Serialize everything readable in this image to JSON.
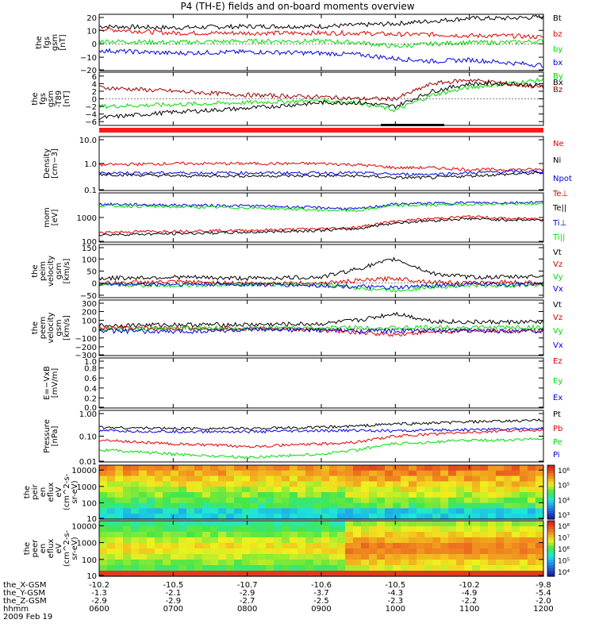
{
  "title": "P4 (TH-E) fields and on-board moments overview",
  "footer": {
    "row_labels": [
      "the_X-GSM",
      "the_Y-GSM",
      "the_Z-GSM",
      "hhmm",
      "2009 Feb 19"
    ],
    "x_gsm": [
      "-10.2",
      "-10.5",
      "-10.7",
      "-10.6",
      "-10.5",
      "-10.2",
      "-9.8"
    ],
    "y_gsm": [
      "-1.3",
      "-2.1",
      "-2.9",
      "-3.7",
      "-4.3",
      "-4.9",
      "-5.4"
    ],
    "z_gsm": [
      "-2.9",
      "-2.9",
      "-2.7",
      "-2.5",
      "-2.3",
      "-2.2",
      "-2.0"
    ],
    "hhmm": [
      "0600",
      "0700",
      "0800",
      "0900",
      "1000",
      "1100",
      "1200"
    ]
  },
  "colors": {
    "black": "#000000",
    "red": "#dd0000",
    "green": "#00dd00",
    "blue": "#0000dd"
  },
  "chart_data": [
    {
      "type": "line",
      "ylabel": [
        "the",
        "fgs",
        "gsm",
        "[nT]"
      ],
      "yticks": [
        "20",
        "10",
        "0",
        "−10",
        "−20"
      ],
      "ylim": [
        -20,
        22
      ],
      "legend": [
        "Bt",
        "bz",
        "by",
        "bx"
      ],
      "series": [
        {
          "name": "Bt",
          "color": "#000000",
          "x": [
            6,
            7,
            8,
            9,
            9.5,
            10,
            10.5,
            11,
            11.5,
            12
          ],
          "values": [
            13,
            12,
            13,
            13,
            14,
            15,
            17,
            19,
            19,
            20
          ]
        },
        {
          "name": "bz",
          "color": "#dd0000",
          "x": [
            6,
            7,
            8,
            9,
            9.5,
            10,
            10.5,
            11,
            11.5,
            12
          ],
          "values": [
            11,
            8,
            8,
            8,
            8,
            7,
            7,
            6,
            6,
            5
          ]
        },
        {
          "name": "by",
          "color": "#00dd00",
          "x": [
            6,
            7,
            8,
            9,
            9.5,
            10,
            10.5,
            11,
            11.5,
            12
          ],
          "values": [
            2,
            1,
            2,
            2,
            1,
            -2,
            0,
            1,
            1,
            2
          ]
        },
        {
          "name": "bx",
          "color": "#0000dd",
          "x": [
            6,
            7,
            8,
            9,
            9.5,
            10,
            10.5,
            11,
            11.5,
            12
          ],
          "values": [
            -5,
            -7,
            -6,
            -7,
            -8,
            -11,
            -13,
            -12,
            -14,
            -16
          ]
        }
      ]
    },
    {
      "type": "line",
      "ylabel": [
        "the",
        "fgs",
        "gsm",
        "-T89",
        "[nT]"
      ],
      "yticks": [
        "6",
        "4",
        "2",
        "0",
        "−2",
        "−4",
        "−6"
      ],
      "ylim": [
        -7,
        7
      ],
      "legend": [
        "By",
        "Bx",
        "Bz"
      ],
      "series": [
        {
          "name": "By",
          "color": "#00dd00",
          "x": [
            6,
            7,
            8,
            9,
            9.5,
            10,
            10.5,
            11,
            11.5,
            12
          ],
          "values": [
            -2,
            -1.5,
            -1,
            -0.5,
            -1,
            -3,
            1,
            3,
            4,
            5
          ]
        },
        {
          "name": "Bx",
          "color": "#000000",
          "x": [
            6,
            7,
            8,
            9,
            9.5,
            10,
            10.5,
            11,
            11.5,
            12
          ],
          "values": [
            -5,
            -3.5,
            -2.5,
            -1,
            -1,
            -2,
            2,
            4,
            4,
            3.5
          ]
        },
        {
          "name": "Bz",
          "color": "#990000",
          "x": [
            6,
            7,
            8,
            9,
            9.5,
            10,
            10.5,
            11,
            11.5,
            12
          ],
          "values": [
            3,
            2,
            1,
            0.5,
            0,
            0,
            4,
            5,
            4,
            3
          ]
        }
      ]
    },
    {
      "type": "line",
      "ylabel": [
        "Density",
        "[cm−3]"
      ],
      "yticks": [
        "10.0",
        "1.0",
        "0.1"
      ],
      "ylim": [
        0.1,
        10
      ],
      "scale": "log",
      "legend": [
        "Ne",
        "Ni",
        "Npot"
      ],
      "series": [
        {
          "name": "Ne",
          "color": "#dd0000",
          "x": [
            6,
            7,
            8,
            9,
            9.5,
            10,
            10.5,
            11,
            11.5,
            12
          ],
          "values": [
            0.9,
            1.0,
            1.0,
            1.0,
            0.9,
            0.7,
            0.7,
            0.6,
            0.6,
            0.6
          ]
        },
        {
          "name": "Ni",
          "color": "#000000",
          "x": [
            6,
            7,
            8,
            9,
            9.5,
            10,
            10.5,
            11,
            11.5,
            12
          ],
          "values": [
            0.4,
            0.35,
            0.35,
            0.35,
            0.35,
            0.3,
            0.3,
            0.35,
            0.4,
            0.45
          ]
        },
        {
          "name": "Npot",
          "color": "#0000dd",
          "x": [
            6,
            7,
            8,
            9,
            9.5,
            10,
            10.5,
            11,
            11.5,
            12
          ],
          "values": [
            0.45,
            0.45,
            0.45,
            0.45,
            0.45,
            0.4,
            0.4,
            0.45,
            0.5,
            0.5
          ]
        }
      ]
    },
    {
      "type": "line",
      "ylabel": [
        "mom",
        "[eV]"
      ],
      "yticks": [
        "1000",
        "100"
      ],
      "ylim": [
        100,
        10000
      ],
      "scale": "log",
      "legend": [
        "Te⊥",
        "Te||",
        "Ti⊥",
        "Ti||"
      ],
      "series": [
        {
          "name": "Ti⊥",
          "color": "#0000dd",
          "x": [
            6,
            7,
            8,
            9,
            9.5,
            10,
            10.5,
            11,
            11.5,
            12
          ],
          "values": [
            3500,
            3200,
            3000,
            2500,
            2200,
            3500,
            3800,
            4000,
            4000,
            4200
          ]
        },
        {
          "name": "Ti||",
          "color": "#00dd00",
          "x": [
            6,
            7,
            8,
            9,
            9.5,
            10,
            10.5,
            11,
            11.5,
            12
          ],
          "values": [
            3000,
            2700,
            2500,
            2000,
            1900,
            3000,
            3200,
            3500,
            3500,
            3600
          ]
        },
        {
          "name": "Te⊥",
          "color": "#dd0000",
          "x": [
            6,
            7,
            8,
            9,
            9.5,
            10,
            10.5,
            11,
            11.5,
            12
          ],
          "values": [
            250,
            280,
            300,
            350,
            400,
            700,
            900,
            1100,
            900,
            900
          ]
        },
        {
          "name": "Te||",
          "color": "#000000",
          "x": [
            6,
            7,
            8,
            9,
            9.5,
            10,
            10.5,
            11,
            11.5,
            12
          ],
          "values": [
            200,
            220,
            250,
            300,
            350,
            600,
            750,
            900,
            800,
            800
          ]
        }
      ]
    },
    {
      "type": "line",
      "ylabel": [
        "the",
        "peim",
        "velocity",
        "gsm",
        "[km/s]"
      ],
      "yticks": [
        "150",
        "100",
        "50",
        "0",
        "−50"
      ],
      "ylim": [
        -60,
        160
      ],
      "legend": [
        "Vt",
        "Vz",
        "Vy",
        "Vx"
      ],
      "series": [
        {
          "name": "Vt",
          "color": "#000000",
          "x": [
            6,
            7,
            8,
            9,
            9.5,
            10,
            10.5,
            11,
            11.5,
            12
          ],
          "values": [
            20,
            25,
            20,
            25,
            60,
            100,
            40,
            25,
            25,
            30
          ]
        },
        {
          "name": "Vz",
          "color": "#dd0000",
          "x": [
            6,
            7,
            8,
            9,
            9.5,
            10,
            10.5,
            11,
            11.5,
            12
          ],
          "values": [
            0,
            5,
            0,
            0,
            10,
            20,
            5,
            0,
            5,
            0
          ]
        },
        {
          "name": "Vy",
          "color": "#00dd00",
          "x": [
            6,
            7,
            8,
            9,
            9.5,
            10,
            10.5,
            11,
            11.5,
            12
          ],
          "values": [
            -5,
            -10,
            -5,
            -5,
            -20,
            -30,
            -15,
            -10,
            -10,
            -5
          ]
        },
        {
          "name": "Vx",
          "color": "#0000dd",
          "x": [
            6,
            7,
            8,
            9,
            9.5,
            10,
            10.5,
            11,
            11.5,
            12
          ],
          "values": [
            -5,
            -5,
            -5,
            -10,
            -15,
            -20,
            -10,
            -5,
            -5,
            -5
          ]
        }
      ]
    },
    {
      "type": "line",
      "ylabel": [
        "the",
        "peem",
        "velocity",
        "gsm",
        "[km/s]"
      ],
      "yticks": [
        "300",
        "200",
        "100",
        "0",
        "−100",
        "−200",
        "−300"
      ],
      "ylim": [
        -300,
        330
      ],
      "legend": [
        "Vt",
        "Vz",
        "Vy",
        "Vx"
      ],
      "series": [
        {
          "name": "Vt",
          "color": "#000000",
          "x": [
            6,
            7,
            8,
            9,
            9.5,
            10,
            10.5,
            11,
            11.5,
            12
          ],
          "values": [
            40,
            50,
            50,
            60,
            100,
            180,
            90,
            80,
            80,
            80
          ]
        },
        {
          "name": "Vz",
          "color": "#dd0000",
          "x": [
            6,
            7,
            8,
            9,
            9.5,
            10,
            10.5,
            11,
            11.5,
            12
          ],
          "values": [
            10,
            10,
            10,
            -10,
            -40,
            -60,
            -30,
            -20,
            -20,
            -20
          ]
        },
        {
          "name": "Vy",
          "color": "#00dd00",
          "x": [
            6,
            7,
            8,
            9,
            9.5,
            10,
            10.5,
            11,
            11.5,
            12
          ],
          "values": [
            0,
            10,
            10,
            10,
            20,
            10,
            20,
            20,
            20,
            20
          ]
        },
        {
          "name": "Vx",
          "color": "#0000dd",
          "x": [
            6,
            7,
            8,
            9,
            9.5,
            10,
            10.5,
            11,
            11.5,
            12
          ],
          "values": [
            -20,
            -30,
            -10,
            -10,
            -20,
            -20,
            -20,
            -20,
            -20,
            -20
          ]
        }
      ]
    },
    {
      "type": "line",
      "ylabel": [
        "E=−VxB",
        "[mV/m]"
      ],
      "yticks": [
        "1.0",
        "0.8",
        "0.6",
        "0.4",
        "0.2",
        "0.0"
      ],
      "ylim": [
        0,
        1
      ],
      "legend": [
        "Ez",
        "Ey",
        "Ex"
      ],
      "series": []
    },
    {
      "type": "line",
      "ylabel": [
        "Pressure",
        "[nPa]"
      ],
      "yticks": [
        "1.00",
        "0.10",
        "0.01"
      ],
      "ylim": [
        0.01,
        1
      ],
      "scale": "log",
      "legend": [
        "Pt",
        "Pb",
        "Pe",
        "Pi"
      ],
      "series": [
        {
          "name": "Pt",
          "color": "#000000",
          "x": [
            6,
            7,
            8,
            9,
            9.5,
            10,
            10.5,
            11,
            11.5,
            12
          ],
          "values": [
            0.22,
            0.2,
            0.2,
            0.22,
            0.25,
            0.3,
            0.32,
            0.36,
            0.38,
            0.42
          ]
        },
        {
          "name": "Pb",
          "color": "#dd0000",
          "x": [
            6,
            7,
            8,
            9,
            9.5,
            10,
            10.5,
            11,
            11.5,
            12
          ],
          "values": [
            0.07,
            0.05,
            0.04,
            0.05,
            0.06,
            0.1,
            0.12,
            0.14,
            0.16,
            0.18
          ]
        },
        {
          "name": "Pe",
          "color": "#00dd00",
          "x": [
            6,
            7,
            8,
            9,
            9.5,
            10,
            10.5,
            11,
            11.5,
            12
          ],
          "values": [
            0.03,
            0.02,
            0.015,
            0.02,
            0.03,
            0.05,
            0.06,
            0.07,
            0.07,
            0.08
          ]
        },
        {
          "name": "Pi",
          "color": "#0000dd",
          "x": [
            6,
            7,
            8,
            9,
            9.5,
            10,
            10.5,
            11,
            11.5,
            12
          ],
          "values": [
            0.16,
            0.15,
            0.15,
            0.16,
            0.17,
            0.16,
            0.17,
            0.18,
            0.19,
            0.2
          ]
        }
      ]
    },
    {
      "type": "heatmap",
      "ylabel": [
        "the",
        "peir",
        "en",
        "eflux",
        "eV",
        "(cm^2-s-",
        "sr-eV)"
      ],
      "yticks": [
        "10000",
        "1000",
        "100",
        "10"
      ],
      "ylim": [
        10,
        20000
      ],
      "scale": "log",
      "colorbar_ticks": [
        "10⁶",
        "10⁵",
        "10⁴",
        "10³"
      ]
    },
    {
      "type": "heatmap",
      "ylabel": [
        "the",
        "peer",
        "en",
        "eflux",
        "eV",
        "(cm^2-s-",
        "sr-eV)"
      ],
      "yticks": [
        "10000",
        "1000",
        "100",
        "10"
      ],
      "ylim": [
        10,
        20000
      ],
      "scale": "log",
      "colorbar_ticks": [
        "10⁸",
        "10⁷",
        "10⁶",
        "10⁵",
        "10⁴"
      ]
    }
  ]
}
